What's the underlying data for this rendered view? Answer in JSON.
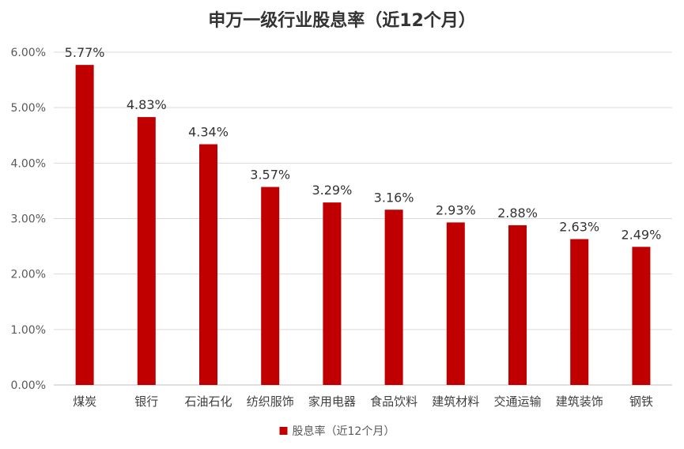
{
  "chart_data": {
    "type": "bar",
    "title": "申万一级行业股息率（近12个月）",
    "categories": [
      "煤炭",
      "银行",
      "石油石化",
      "纺织服饰",
      "家用电器",
      "食品饮料",
      "建筑材料",
      "交通运输",
      "建筑装饰",
      "钢铁"
    ],
    "series": [
      {
        "name": "股息率（近12个月）",
        "values": [
          5.77,
          4.83,
          4.34,
          3.57,
          3.29,
          3.16,
          2.93,
          2.88,
          2.63,
          2.49
        ],
        "data_labels": [
          "5.77%",
          "4.83%",
          "4.34%",
          "3.57%",
          "3.29%",
          "3.16%",
          "2.93%",
          "2.88%",
          "2.63%",
          "2.49%"
        ],
        "color": "#C00000"
      }
    ],
    "ylim": [
      0,
      6
    ],
    "yticks": [
      0,
      1,
      2,
      3,
      4,
      5,
      6
    ],
    "ytick_labels": [
      "0.00%",
      "1.00%",
      "2.00%",
      "3.00%",
      "4.00%",
      "5.00%",
      "6.00%"
    ],
    "grid": true,
    "grid_color": "#D9D9D9",
    "legend_position": "bottom"
  }
}
